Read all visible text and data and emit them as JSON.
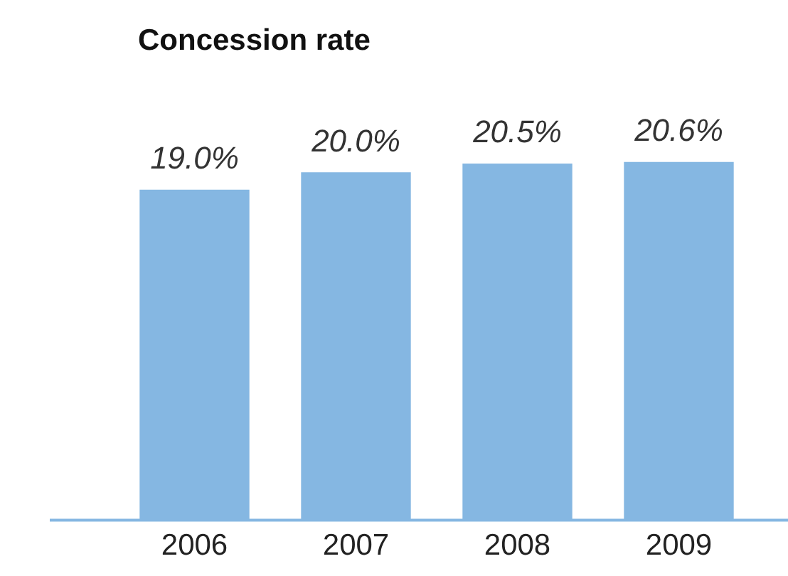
{
  "chart_data": {
    "type": "bar",
    "title": "Concession rate",
    "categories": [
      "2006",
      "2007",
      "2008",
      "2009"
    ],
    "values": [
      19.0,
      20.0,
      20.5,
      20.6
    ],
    "value_labels": [
      "19.0%",
      "20.0%",
      "20.5%",
      "20.6%"
    ],
    "color": "#85b7e2",
    "grid": false,
    "legend": false
  }
}
